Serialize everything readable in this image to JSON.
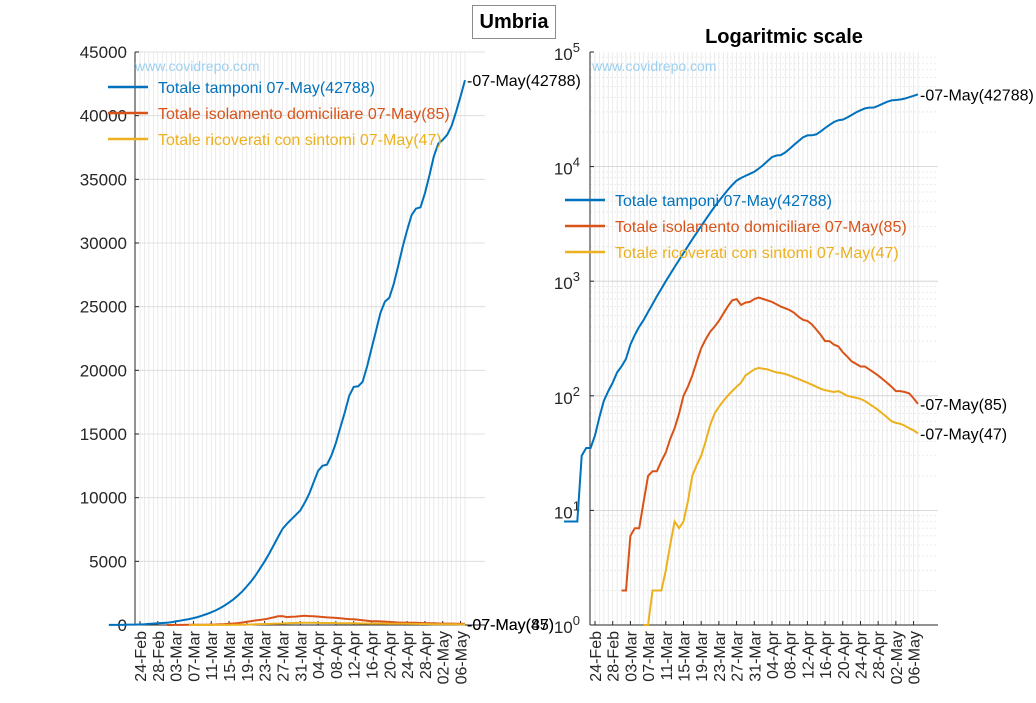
{
  "page_title": "Umbria",
  "watermark": "www.covidrepo.com",
  "colors": {
    "tamponi": "#0072BD",
    "isolamento": "#D95319",
    "ricoverati": "#EDB120"
  },
  "chart_data": [
    {
      "type": "line",
      "title": "",
      "ylim": [
        0,
        45000
      ],
      "yticks": [
        "0",
        "5000",
        "10000",
        "15000",
        "20000",
        "25000",
        "30000",
        "35000",
        "40000",
        "45000"
      ],
      "xticks": [
        "24-Feb",
        "28-Feb",
        "03-Mar",
        "07-Mar",
        "11-Mar",
        "15-Mar",
        "19-Mar",
        "23-Mar",
        "27-Mar",
        "31-Mar",
        "04-Apr",
        "08-Apr",
        "12-Apr",
        "16-Apr",
        "20-Apr",
        "24-Apr",
        "28-Apr",
        "02-May",
        "06-May"
      ],
      "legend": [
        "Totale tamponi 07-May(42788)",
        "Totale isolamento domiciliare 07-May(85)",
        "Totale ricoverati con sintomi 07-May(47)"
      ],
      "legend_position": "top-left",
      "annotations": [
        "-07-May(42788)",
        "-07-May(85)",
        "-07-May(47)"
      ],
      "grid": true
    },
    {
      "type": "line",
      "title": "Logaritmic scale",
      "yscale": "log",
      "ylim": [
        1,
        100000
      ],
      "yticks": [
        "10^0",
        "10^1",
        "10^2",
        "10^3",
        "10^4",
        "10^5"
      ],
      "xticks": [
        "24-Feb",
        "28-Feb",
        "03-Mar",
        "07-Mar",
        "11-Mar",
        "15-Mar",
        "19-Mar",
        "23-Mar",
        "27-Mar",
        "31-Mar",
        "04-Apr",
        "08-Apr",
        "12-Apr",
        "16-Apr",
        "20-Apr",
        "24-Apr",
        "28-Apr",
        "02-May",
        "06-May"
      ],
      "legend": [
        "Totale tamponi 07-May(42788)",
        "Totale isolamento domiciliare 07-May(85)",
        "Totale ricoverati con sintomi 07-May(47)"
      ],
      "legend_position": "middle-left",
      "annotations": [
        "-07-May(42788)",
        "-07-May(85)",
        "-07-May(47)"
      ],
      "grid": true
    }
  ],
  "series_data": {
    "dates": [
      "24-Feb",
      "07-May"
    ],
    "tamponi": [
      8,
      8,
      8,
      8,
      30,
      35,
      35,
      45,
      65,
      90,
      110,
      130,
      160,
      180,
      210,
      280,
      340,
      400,
      460,
      540,
      630,
      740,
      860,
      1000,
      1150,
      1330,
      1530,
      1760,
      2020,
      2320,
      2650,
      3030,
      3450,
      3920,
      4450,
      5000,
      5600,
      6250,
      6900,
      7550,
      7950,
      8300,
      8650,
      9000,
      9600,
      10300,
      11200,
      12100,
      12500,
      12600,
      13300,
      14300,
      15500,
      16700,
      18000,
      18700,
      18750,
      19100,
      20300,
      21700,
      23100,
      24500,
      25400,
      25700,
      26800,
      28200,
      29700,
      31000,
      32200,
      32700,
      32800,
      33900,
      35300,
      36800,
      37800,
      38100,
      38500,
      39200,
      40300,
      41500,
      42788
    ],
    "isolamento": [
      null,
      null,
      null,
      null,
      null,
      2,
      2,
      6,
      7,
      7,
      12,
      20,
      22,
      22,
      27,
      32,
      42,
      52,
      70,
      100,
      120,
      150,
      200,
      260,
      310,
      360,
      400,
      450,
      520,
      600,
      680,
      700,
      620,
      650,
      660,
      700,
      720,
      700,
      680,
      660,
      630,
      600,
      580,
      560,
      530,
      490,
      460,
      450,
      420,
      380,
      340,
      300,
      300,
      280,
      270,
      240,
      220,
      200,
      190,
      180,
      180,
      170,
      160,
      150,
      140,
      130,
      120,
      110,
      110,
      108,
      105,
      95,
      85
    ],
    "ricoverati": [
      null,
      null,
      null,
      null,
      null,
      null,
      null,
      null,
      1,
      1,
      2,
      2,
      2,
      3,
      5,
      8,
      7,
      8,
      12,
      20,
      25,
      30,
      40,
      55,
      70,
      80,
      90,
      100,
      110,
      120,
      130,
      150,
      160,
      170,
      175,
      172,
      170,
      165,
      160,
      158,
      155,
      150,
      145,
      140,
      135,
      130,
      125,
      120,
      115,
      112,
      110,
      108,
      110,
      105,
      100,
      98,
      96,
      94,
      90,
      85,
      80,
      75,
      70,
      65,
      60,
      58,
      57,
      55,
      52,
      50,
      47
    ]
  }
}
